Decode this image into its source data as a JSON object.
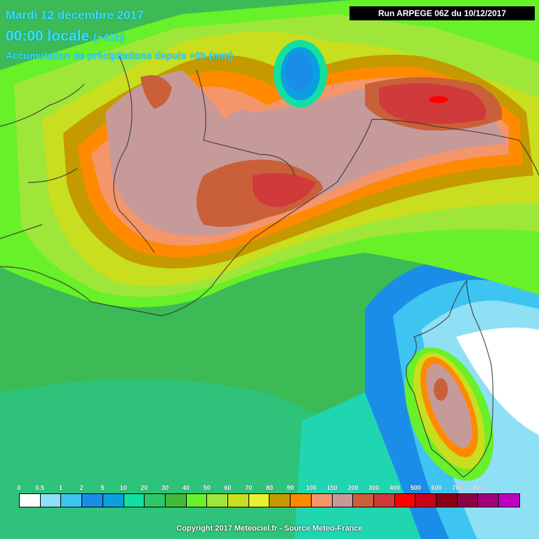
{
  "header": {
    "date": "Mardi 12 décembre 2017",
    "time": "00:00 locale",
    "lead": "(+41h)",
    "product": "Accumulation de précipitations depuis +0h (mm)"
  },
  "run_label": "Run ARPEGE 06Z du 10/12/2017",
  "legend": {
    "labels": [
      "0",
      "0.5",
      "1",
      "2",
      "5",
      "10",
      "20",
      "30",
      "40",
      "50",
      "60",
      "70",
      "80",
      "90",
      "100",
      "150",
      "200",
      "300",
      "400",
      "500",
      "600",
      "700",
      "800"
    ],
    "colors": [
      "#ffffff",
      "#8fe0f5",
      "#3ec4f0",
      "#1a8de8",
      "#0aa0e0",
      "#13e0a0",
      "#2cc866",
      "#44b838",
      "#68f028",
      "#9ee63a",
      "#c8de1e",
      "#e8f034",
      "#c49a00",
      "#ff8a00",
      "#f5956a",
      "#c79a9a",
      "#c9603a",
      "#d03a3a",
      "#ff0000",
      "#c8001a",
      "#8a0010",
      "#8a0044",
      "#a0007a",
      "#bf00c0"
    ]
  },
  "copyright": "Copyright 2017 Meteociel.fr - Source Meteo-France"
}
